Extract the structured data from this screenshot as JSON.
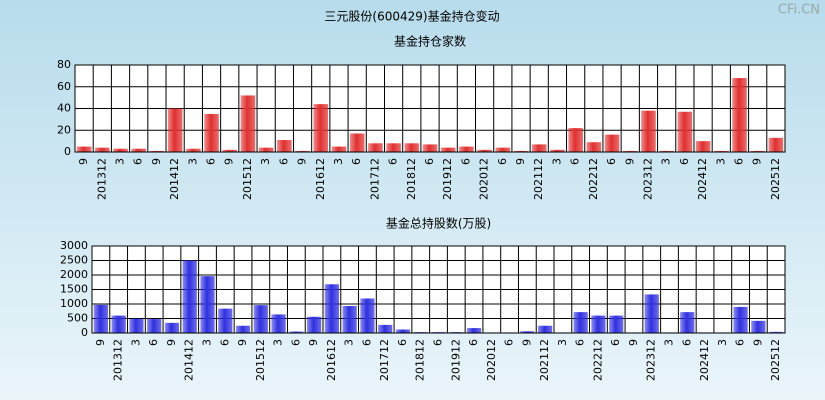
{
  "page_title": "三元股份(600429)基金持仓变动",
  "watermark": "CFi.CN",
  "chart_data": [
    {
      "type": "bar",
      "title": "基金持仓家数",
      "color": "#e03030",
      "categories": [
        "9",
        "201312",
        "3",
        "6",
        "9",
        "201412",
        "3",
        "6",
        "9",
        "201512",
        "3",
        "6",
        "9",
        "201612",
        "3",
        "6",
        "201712",
        "6",
        "201812",
        "6",
        "201912",
        "6",
        "202012",
        "6",
        "9",
        "202112",
        "3",
        "6",
        "202212",
        "6",
        "9",
        "202312",
        "3",
        "6",
        "202412",
        "3",
        "6",
        "9",
        "202512"
      ],
      "values": [
        5,
        4,
        3,
        3,
        1,
        40,
        3,
        35,
        2,
        52,
        4,
        11,
        1,
        44,
        5,
        17,
        8,
        8,
        8,
        7,
        4,
        5,
        2,
        4,
        1,
        7,
        2,
        22,
        9,
        16,
        1,
        38,
        1,
        37,
        10,
        1,
        68,
        1,
        13
      ],
      "ylim": [
        0,
        80
      ],
      "yticks": [
        0,
        20,
        40,
        60,
        80
      ],
      "grid": true
    },
    {
      "type": "bar",
      "title": "基金总持股数(万股)",
      "color": "#3030e0",
      "categories": [
        "9",
        "201312",
        "3",
        "6",
        "9",
        "201412",
        "3",
        "6",
        "9",
        "201512",
        "3",
        "6",
        "9",
        "201612",
        "3",
        "6",
        "201712",
        "6",
        "201812",
        "6",
        "201912",
        "6",
        "202012",
        "6",
        "9",
        "202112",
        "3",
        "6",
        "202212",
        "6",
        "9",
        "202312",
        "3",
        "6",
        "202412",
        "3",
        "6",
        "9",
        "202512"
      ],
      "values": [
        970,
        600,
        490,
        480,
        350,
        2500,
        1960,
        840,
        250,
        960,
        640,
        50,
        560,
        1680,
        930,
        1190,
        280,
        120,
        30,
        30,
        30,
        170,
        20,
        20,
        60,
        250,
        20,
        720,
        600,
        600,
        20,
        1330,
        20,
        720,
        20,
        20,
        900,
        420,
        40
      ],
      "ylim": [
        0,
        3000
      ],
      "yticks": [
        0,
        500,
        1000,
        1500,
        2000,
        2500,
        3000
      ],
      "grid": true
    }
  ]
}
